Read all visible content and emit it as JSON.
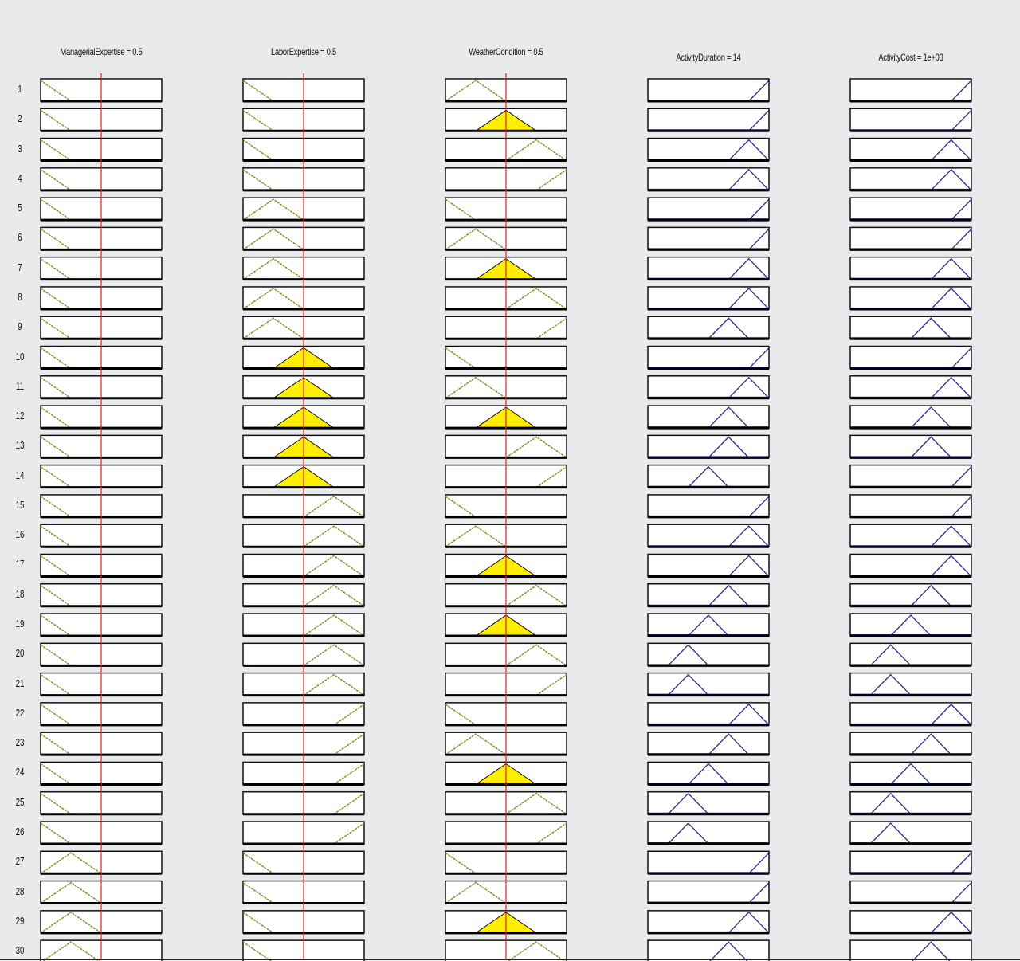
{
  "headers": [
    {
      "label": "ManagerialExpertise = 0.5",
      "kind": "input",
      "value": 0.5
    },
    {
      "label": "LaborExpertise = 0.5",
      "kind": "input",
      "value": 0.5
    },
    {
      "label": "WeatherCondition = 0.5",
      "kind": "input",
      "value": 0.5
    },
    {
      "label": "ActivityDuration = 14",
      "kind": "output"
    },
    {
      "label": "ActivityCost = 1e+03",
      "kind": "output"
    }
  ],
  "colors": {
    "input_mf": "#8c8a2e",
    "output_mf": "#2a2a8c",
    "fired_fill": "#ffee00",
    "input_marker": "#e02020"
  },
  "rules": [
    {
      "n": "1",
      "mf": [
        1,
        1,
        2,
        6,
        6
      ]
    },
    {
      "n": "2",
      "mf": [
        1,
        1,
        3,
        6,
        6
      ]
    },
    {
      "n": "3",
      "mf": [
        1,
        1,
        4,
        5,
        5
      ]
    },
    {
      "n": "4",
      "mf": [
        1,
        1,
        5,
        5,
        5
      ]
    },
    {
      "n": "5",
      "mf": [
        1,
        2,
        1,
        6,
        6
      ]
    },
    {
      "n": "6",
      "mf": [
        1,
        2,
        2,
        6,
        6
      ]
    },
    {
      "n": "7",
      "mf": [
        1,
        2,
        3,
        5,
        5
      ]
    },
    {
      "n": "8",
      "mf": [
        1,
        2,
        4,
        5,
        5
      ]
    },
    {
      "n": "9",
      "mf": [
        1,
        2,
        5,
        4,
        4
      ]
    },
    {
      "n": "10",
      "mf": [
        1,
        3,
        1,
        6,
        6
      ]
    },
    {
      "n": "11",
      "mf": [
        1,
        3,
        2,
        5,
        5
      ]
    },
    {
      "n": "12",
      "mf": [
        1,
        3,
        3,
        4,
        4
      ]
    },
    {
      "n": "13",
      "mf": [
        1,
        3,
        4,
        4,
        4
      ]
    },
    {
      "n": "14",
      "mf": [
        1,
        3,
        5,
        3,
        6
      ]
    },
    {
      "n": "15",
      "mf": [
        1,
        4,
        1,
        6,
        6
      ]
    },
    {
      "n": "16",
      "mf": [
        1,
        4,
        2,
        5,
        5
      ]
    },
    {
      "n": "17",
      "mf": [
        1,
        4,
        3,
        5,
        5
      ]
    },
    {
      "n": "18",
      "mf": [
        1,
        4,
        4,
        4,
        4
      ]
    },
    {
      "n": "19",
      "mf": [
        1,
        4,
        3,
        3,
        3
      ]
    },
    {
      "n": "20",
      "mf": [
        1,
        4,
        4,
        2,
        2
      ]
    },
    {
      "n": "21",
      "mf": [
        1,
        4,
        5,
        2,
        2
      ]
    },
    {
      "n": "22",
      "mf": [
        1,
        5,
        1,
        5,
        5
      ]
    },
    {
      "n": "23",
      "mf": [
        1,
        5,
        2,
        4,
        4
      ]
    },
    {
      "n": "24",
      "mf": [
        1,
        5,
        3,
        3,
        3
      ]
    },
    {
      "n": "25",
      "mf": [
        1,
        5,
        4,
        2,
        2
      ]
    },
    {
      "n": "26",
      "mf": [
        1,
        5,
        5,
        2,
        2
      ]
    },
    {
      "n": "27",
      "mf": [
        2,
        1,
        1,
        6,
        6
      ]
    },
    {
      "n": "28",
      "mf": [
        2,
        1,
        2,
        6,
        6
      ]
    },
    {
      "n": "29",
      "mf": [
        2,
        1,
        3,
        5,
        5
      ]
    },
    {
      "n": "30",
      "mf": [
        2,
        1,
        4,
        4,
        4
      ]
    }
  ]
}
